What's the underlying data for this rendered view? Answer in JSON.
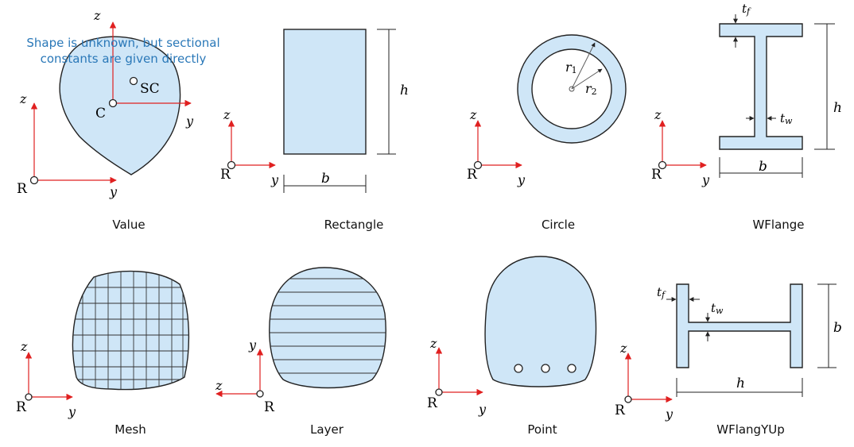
{
  "colors": {
    "fill": "#cfe6f7",
    "outline": "#222222",
    "axis": "#e02020",
    "note": "#2a78b8"
  },
  "panels": [
    {
      "key": "value",
      "caption": "Value"
    },
    {
      "key": "rectangle",
      "caption": "Rectangle"
    },
    {
      "key": "circle",
      "caption": "Circle"
    },
    {
      "key": "wflange",
      "caption": "WFlange"
    },
    {
      "key": "mesh",
      "caption": "Mesh"
    },
    {
      "key": "layer",
      "caption": "Layer"
    },
    {
      "key": "point",
      "caption": "Point"
    },
    {
      "key": "wflangyup",
      "caption": "WFlangYUp"
    }
  ],
  "labels": {
    "note_line1": "Shape is unknown, but sectional",
    "note_line2": "constants are given directly",
    "y": "y",
    "z": "z",
    "R": "R",
    "C": "C",
    "SC": "SC",
    "h": "h",
    "b": "b",
    "r1_base": "r",
    "r1_sub": "1",
    "r2_base": "r",
    "r2_sub": "2",
    "tf_base": "t",
    "tf_sub": "f",
    "tw_base": "t",
    "tw_sub": "w"
  }
}
